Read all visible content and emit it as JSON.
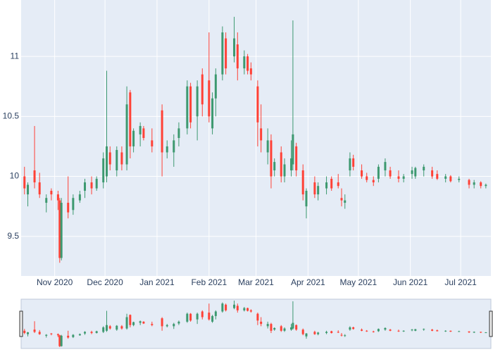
{
  "chart_data": {
    "type": "candlestick",
    "x": [
      "2020-10-14",
      "2020-10-16",
      "2020-10-20",
      "2020-10-23",
      "2020-10-27",
      "2020-10-30",
      "2020-11-03",
      "2020-11-04",
      "2020-11-05",
      "2020-11-09",
      "2020-11-12",
      "2020-11-16",
      "2020-11-19",
      "2020-11-23",
      "2020-11-26",
      "2020-11-30",
      "2020-12-02",
      "2020-12-04",
      "2020-12-08",
      "2020-12-11",
      "2020-12-14",
      "2020-12-16",
      "2020-12-18",
      "2020-12-22",
      "2020-12-24",
      "2020-12-29",
      "2021-01-04",
      "2021-01-07",
      "2021-01-11",
      "2021-01-14",
      "2021-01-19",
      "2021-01-21",
      "2021-01-25",
      "2021-01-28",
      "2021-02-01",
      "2021-02-03",
      "2021-02-05",
      "2021-02-09",
      "2021-02-11",
      "2021-02-16",
      "2021-02-18",
      "2021-02-22",
      "2021-02-24",
      "2021-02-26",
      "2021-03-02",
      "2021-03-04",
      "2021-03-08",
      "2021-03-10",
      "2021-03-12",
      "2021-03-16",
      "2021-03-18",
      "2021-03-22",
      "2021-03-23",
      "2021-03-25",
      "2021-03-29",
      "2021-03-31",
      "2021-04-05",
      "2021-04-07",
      "2021-04-12",
      "2021-04-15",
      "2021-04-19",
      "2021-04-21",
      "2021-04-23",
      "2021-04-26",
      "2021-04-28",
      "2021-05-03",
      "2021-05-06",
      "2021-05-10",
      "2021-05-13",
      "2021-05-17",
      "2021-05-20",
      "2021-05-25",
      "2021-05-28",
      "2021-06-02",
      "2021-06-04",
      "2021-06-09",
      "2021-06-14",
      "2021-06-17",
      "2021-06-22",
      "2021-06-25",
      "2021-06-30",
      "2021-07-06",
      "2021-07-09",
      "2021-07-13",
      "2021-07-16"
    ],
    "open": [
      10.0,
      9.85,
      10.05,
      9.95,
      9.78,
      9.88,
      9.85,
      9.8,
      9.32,
      9.78,
      9.72,
      9.8,
      9.88,
      9.95,
      9.9,
      9.95,
      10.0,
      10.2,
      10.05,
      10.2,
      10.1,
      10.7,
      10.25,
      10.35,
      10.4,
      10.3,
      10.55,
      10.2,
      10.2,
      10.32,
      10.4,
      10.75,
      10.5,
      10.85,
      10.8,
      10.4,
      10.65,
      10.85,
      11.15,
      11.0,
      11.1,
      10.9,
      11.0,
      10.9,
      10.75,
      10.4,
      10.2,
      10.3,
      10.05,
      10.2,
      10.0,
      10.05,
      10.1,
      10.25,
      10.05,
      9.75,
      9.95,
      9.85,
      9.9,
      9.98,
      9.95,
      9.82,
      9.78,
      10.05,
      10.15,
      10.05,
      10.0,
      9.97,
      9.98,
      10.05,
      10.05,
      10.0,
      9.98,
      10.02,
      10.0,
      10.05,
      10.05,
      10.02,
      9.98,
      10.0,
      9.97,
      9.97,
      9.93,
      9.95,
      9.92
    ],
    "high": [
      10.08,
      9.95,
      10.42,
      10.03,
      9.85,
      9.9,
      9.88,
      9.82,
      9.82,
      10.0,
      9.85,
      9.88,
      9.98,
      10.0,
      10.0,
      10.2,
      10.88,
      10.25,
      10.25,
      10.25,
      10.75,
      10.72,
      10.4,
      10.45,
      10.42,
      10.4,
      10.6,
      10.3,
      10.35,
      10.45,
      10.8,
      10.78,
      10.8,
      10.9,
      11.2,
      10.7,
      10.9,
      11.25,
      11.2,
      11.33,
      11.2,
      11.05,
      11.02,
      10.95,
      10.8,
      10.6,
      10.4,
      10.35,
      10.15,
      10.25,
      10.15,
      10.3,
      11.3,
      10.28,
      10.1,
      9.9,
      10.0,
      9.95,
      10.0,
      10.0,
      10.02,
      9.9,
      9.85,
      10.2,
      10.18,
      10.1,
      10.03,
      10.0,
      10.1,
      10.15,
      10.08,
      10.05,
      10.02,
      10.08,
      10.08,
      10.1,
      10.08,
      10.05,
      10.02,
      10.01,
      10.0,
      9.98,
      9.97,
      9.96,
      9.94
    ],
    "low": [
      9.85,
      9.75,
      9.9,
      9.82,
      9.7,
      9.8,
      9.72,
      9.28,
      9.3,
      9.65,
      9.68,
      9.78,
      9.82,
      9.85,
      9.88,
      9.9,
      9.95,
      10.05,
      10.0,
      10.05,
      10.05,
      10.15,
      10.2,
      10.25,
      10.3,
      10.2,
      10.0,
      10.15,
      10.08,
      10.25,
      10.35,
      10.4,
      10.3,
      10.5,
      10.45,
      10.35,
      10.5,
      10.8,
      10.85,
      10.95,
      10.8,
      10.85,
      10.85,
      10.8,
      10.25,
      10.2,
      10.1,
      9.9,
      10.0,
      9.95,
      9.95,
      10.0,
      10.05,
      10.0,
      9.8,
      9.65,
      9.82,
      9.8,
      9.85,
      9.88,
      9.9,
      9.75,
      9.73,
      10.0,
      10.05,
      9.98,
      9.95,
      9.92,
      9.95,
      10.0,
      9.98,
      9.95,
      9.95,
      9.98,
      9.98,
      10.0,
      9.98,
      9.97,
      9.95,
      9.95,
      9.95,
      9.9,
      9.9,
      9.9,
      9.9
    ],
    "close": [
      9.9,
      9.93,
      9.95,
      9.85,
      9.82,
      9.85,
      9.8,
      9.32,
      9.78,
      9.7,
      9.82,
      9.85,
      9.95,
      9.9,
      9.98,
      10.15,
      10.25,
      10.1,
      10.22,
      10.1,
      10.6,
      10.25,
      10.38,
      10.42,
      10.32,
      10.25,
      10.2,
      10.25,
      10.3,
      10.4,
      10.75,
      10.45,
      10.75,
      10.6,
      10.5,
      10.65,
      10.85,
      11.2,
      10.9,
      11.15,
      10.9,
      11.0,
      10.88,
      10.85,
      10.45,
      10.3,
      10.3,
      10.0,
      10.12,
      10.0,
      10.1,
      10.15,
      10.35,
      10.05,
      9.85,
      9.88,
      9.85,
      9.92,
      9.95,
      9.9,
      9.92,
      9.8,
      9.8,
      10.15,
      10.08,
      10.0,
      9.97,
      9.95,
      10.08,
      10.12,
      10.0,
      9.98,
      10.0,
      10.05,
      10.07,
      10.08,
      10.0,
      9.98,
      10.0,
      9.96,
      9.98,
      9.93,
      9.95,
      9.92,
      9.93
    ],
    "increasing_color": "#3d9970",
    "decreasing_color": "#ff4136",
    "ylim": [
      9.17,
      11.47
    ],
    "yticks": [
      9.5,
      10,
      10.5,
      11
    ],
    "xlim": [
      "2020-10-12",
      "2021-07-19"
    ],
    "xticks": [
      {
        "value": "2020-11-01",
        "label": "Nov 2020"
      },
      {
        "value": "2020-12-01",
        "label": "Dec 2020"
      },
      {
        "value": "2021-01-01",
        "label": "Jan 2021"
      },
      {
        "value": "2021-02-01",
        "label": "Feb 2021"
      },
      {
        "value": "2021-03-01",
        "label": "Mar 2021"
      },
      {
        "value": "2021-04-01",
        "label": "Apr 2021"
      },
      {
        "value": "2021-05-01",
        "label": "May 2021"
      },
      {
        "value": "2021-06-01",
        "label": "Jun 2021"
      },
      {
        "value": "2021-07-01",
        "label": "Jul 2021"
      }
    ],
    "grid": true,
    "rangeslider": true
  }
}
